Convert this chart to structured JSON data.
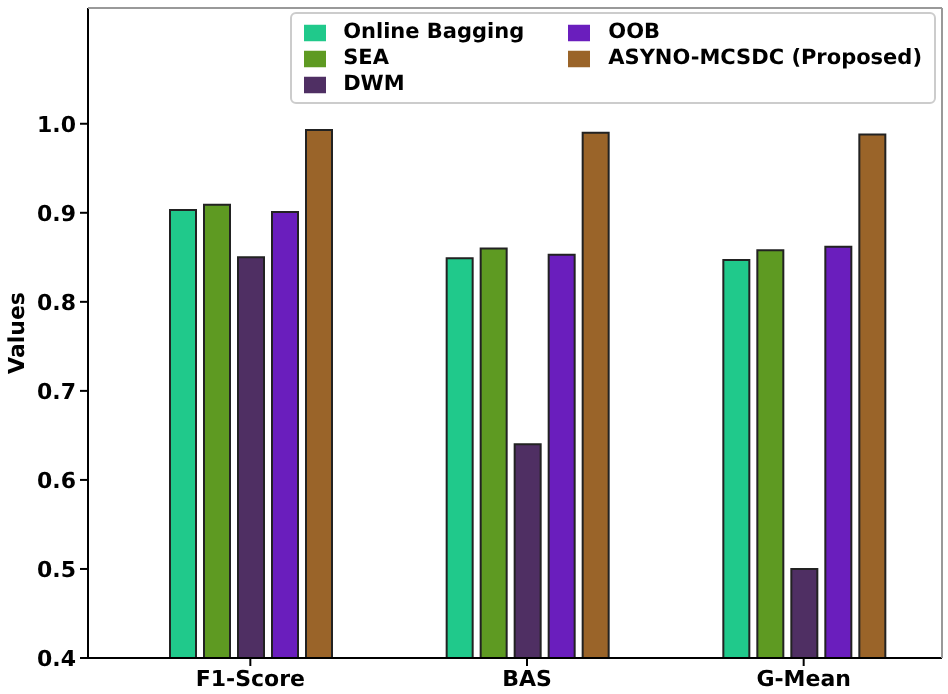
{
  "chart_data": {
    "type": "bar",
    "ylabel": "Values",
    "categories": [
      "F1-Score",
      "BAS",
      "G-Mean"
    ],
    "series": [
      {
        "name": "Online Bagging",
        "color": "#20c98b",
        "values": [
          0.903,
          0.849,
          0.847
        ]
      },
      {
        "name": "SEA",
        "color": "#5e9a22",
        "values": [
          0.909,
          0.86,
          0.858
        ]
      },
      {
        "name": "DWM",
        "color": "#4f2f63",
        "values": [
          0.85,
          0.64,
          0.5
        ]
      },
      {
        "name": "OOB",
        "color": "#6a1ebd",
        "values": [
          0.901,
          0.853,
          0.862
        ]
      },
      {
        "name": "ASYNO-MCSDC (Proposed)",
        "color": "#9a6429",
        "values": [
          0.993,
          0.99,
          0.988
        ]
      }
    ],
    "ylim": [
      0.4,
      1.13
    ],
    "yticks": [
      0.4,
      0.5,
      0.6,
      0.7,
      0.8,
      0.9,
      {
        "value": 1,
        "label": "1.0"
      }
    ],
    "grid": false,
    "legend": "top right"
  }
}
